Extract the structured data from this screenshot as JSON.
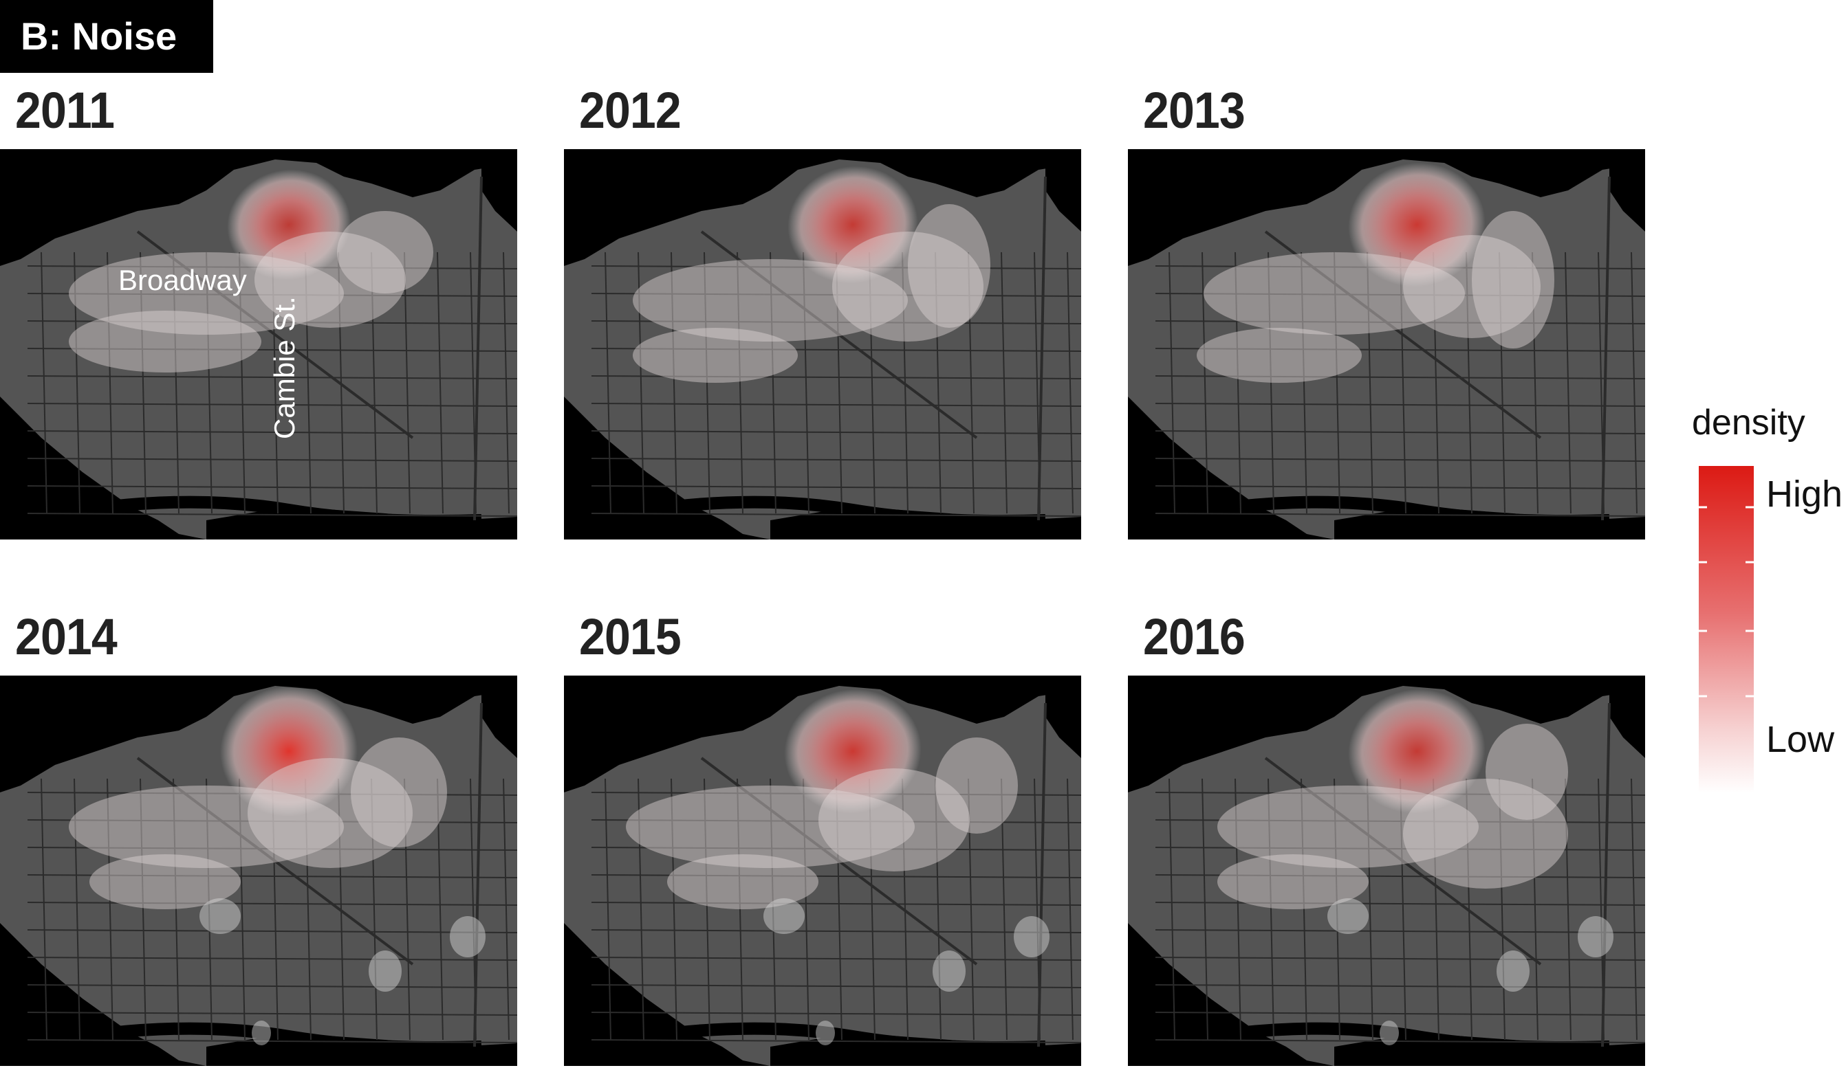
{
  "panel_label": "B: Noise",
  "years": [
    "2011",
    "2012",
    "2013",
    "2014",
    "2015",
    "2016"
  ],
  "annotations": {
    "street_1": "Broadway",
    "street_2": "Cambie St."
  },
  "legend": {
    "title": "density",
    "high": "High",
    "low": "Low",
    "high_color": "#d7191c",
    "low_color": "#ffffff"
  },
  "colors": {
    "water": "#000000",
    "land": "#545454",
    "roads": "#2b2b2b"
  },
  "hotspot_intensity": [
    0.75,
    0.8,
    0.85,
    1.0,
    0.85,
    0.8
  ]
}
